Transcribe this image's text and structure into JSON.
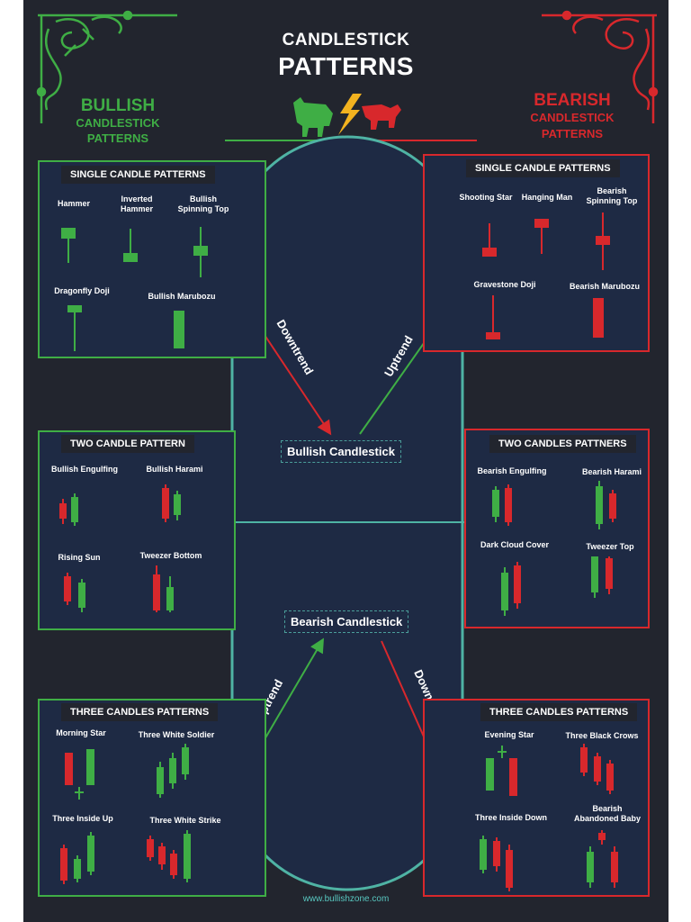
{
  "header": {
    "title_line1": "CANDLESTICK",
    "title_line2": "PATTERNS"
  },
  "bullish_header": {
    "big": "BULLISH",
    "line2": "CANDLESTICK",
    "line3": "PATTERNS",
    "color": "#3fae45"
  },
  "bearish_header": {
    "big": "BEARISH",
    "line2": "CANDLESTICK",
    "line3": "PATTERNS",
    "color": "#d8282c"
  },
  "colors": {
    "bull": "#3fae45",
    "bear": "#d8282c",
    "panel_bg": "#1e2a44",
    "poster_bg": "#22252e",
    "track": "#4fb3a4"
  },
  "left_panels": {
    "single": {
      "title": "SINGLE CANDLE PATTERNS",
      "items": [
        "Hammer",
        "Inverted\nHammer",
        "Bullish\nSpinning Top",
        "Dragonfly Doji",
        "Bullish Marubozu"
      ]
    },
    "two": {
      "title": "TWO CANDLE PATTERN",
      "items": [
        "Bullish Engulfing",
        "Bullish Harami",
        "Rising Sun",
        "Tweezer Bottom"
      ]
    },
    "three": {
      "title": "THREE CANDLES PATTERNS",
      "items": [
        "Morning Star",
        "Three White Soldier",
        "Three Inside Up",
        "Three White Strike"
      ]
    }
  },
  "right_panels": {
    "single": {
      "title": "SINGLE CANDLE PATTERNS",
      "items": [
        "Shooting Star",
        "Hanging Man",
        "Bearish\nSpinning Top",
        "Gravestone Doji",
        "Bearish Marubozu"
      ]
    },
    "two": {
      "title": "TWO CANDLES PATTNERS",
      "items": [
        "Bearish Engulfing",
        "Bearish Harami",
        "Dark Cloud Cover",
        "Tweezer Top"
      ]
    },
    "three": {
      "title": "THREE CANDLES PATTERNS",
      "items": [
        "Evening Star",
        "Three Black Crows",
        "Three Inside Down",
        "Bearish\nAbandoned Baby"
      ]
    }
  },
  "center": {
    "bullish_label": "Bullish Candlestick",
    "bearish_label": "Bearish Candlestick",
    "top_left_arrow": "Downtrend",
    "top_right_arrow": "Uptrend",
    "bottom_left_arrow": "Uptrend",
    "bottom_right_arrow": "Downtrend"
  },
  "footer": {
    "url": "www.bullishzone.com"
  }
}
